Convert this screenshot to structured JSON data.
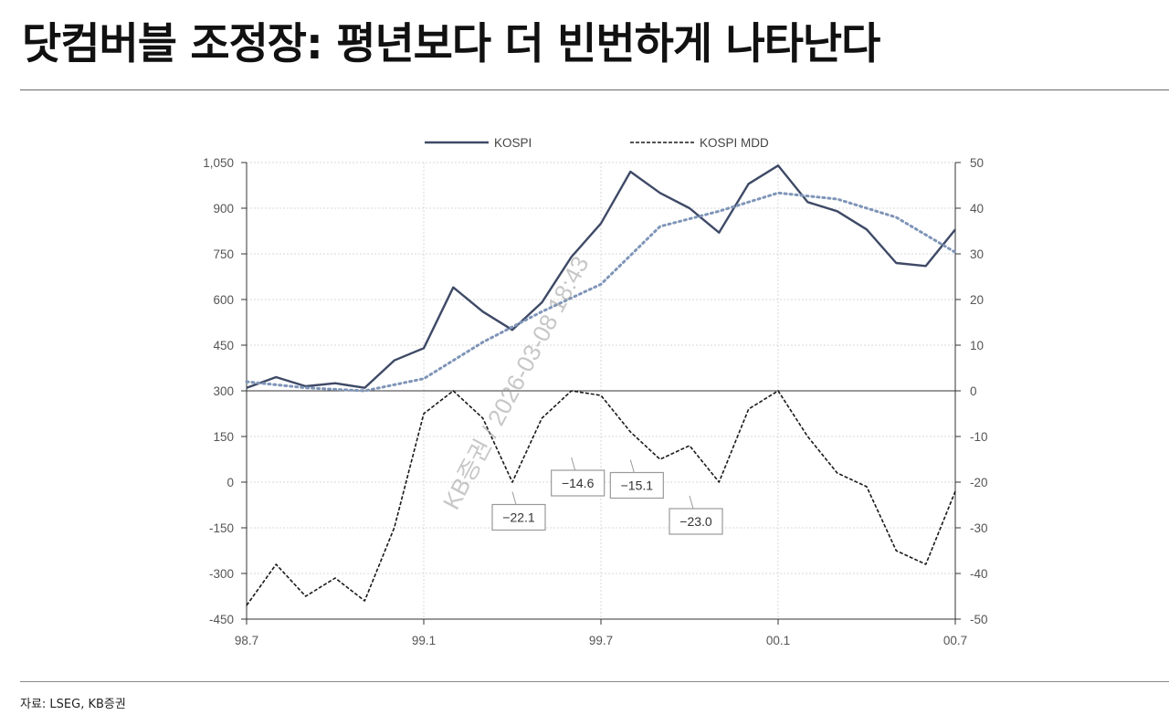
{
  "title": "닷컴버블 조정장: 평년보다 더 빈번하게 나타난다",
  "source": "자료: LSEG, KB증권",
  "watermark": "KB증권 / 2026-03-08 18:43",
  "colors": {
    "kospi": "#3e4a66",
    "kospi_trend": "#7f95b8",
    "mdd": "#1a1a1a",
    "grid": "#d9d9d9",
    "axis": "#333333",
    "callout_border": "#9a9a9a"
  },
  "chart_data": {
    "type": "line",
    "legend": {
      "position": "top-center",
      "items": [
        "KOSPI",
        "KOSPI MDD"
      ]
    },
    "grid": true,
    "x_ticks": [
      "98.7",
      "99.1",
      "99.7",
      "00.1",
      "00.7"
    ],
    "x_range": [
      "1998-07",
      "2000-07"
    ],
    "y_left": {
      "range": [
        -450,
        1050
      ],
      "ticks": [
        "1,050",
        "900",
        "750",
        "600",
        "450",
        "300",
        "150",
        "0",
        "-150",
        "-300",
        "-450"
      ]
    },
    "y_right": {
      "range": [
        -50,
        50
      ],
      "ticks": [
        "50",
        "40",
        "30",
        "20",
        "10",
        "0",
        "-10",
        "-20",
        "-30",
        "-40",
        "-50"
      ]
    },
    "series": [
      {
        "name": "KOSPI",
        "axis": "left",
        "style": "solid",
        "x": [
          "1998-07",
          "1998-08",
          "1998-09",
          "1998-10",
          "1998-11",
          "1998-12",
          "1999-01",
          "1999-02",
          "1999-03",
          "1999-04",
          "1999-05",
          "1999-06",
          "1999-07",
          "1999-08",
          "1999-09",
          "1999-10",
          "1999-11",
          "1999-12",
          "2000-01",
          "2000-02",
          "2000-03",
          "2000-04",
          "2000-05",
          "2000-06",
          "2000-07"
        ],
        "values": [
          310,
          345,
          315,
          325,
          310,
          400,
          440,
          640,
          560,
          500,
          590,
          740,
          850,
          1020,
          950,
          900,
          820,
          980,
          1040,
          920,
          890,
          830,
          720,
          710,
          830
        ]
      },
      {
        "name": "KOSPI",
        "axis": "left",
        "style": "dotted",
        "x": [
          "1998-07",
          "1998-09",
          "1998-11",
          "1999-01",
          "1999-03",
          "1999-05",
          "1999-07",
          "1999-09",
          "1999-11",
          "2000-01",
          "2000-03",
          "2000-05",
          "2000-07"
        ],
        "values": [
          330,
          310,
          300,
          340,
          460,
          560,
          650,
          840,
          890,
          950,
          930,
          870,
          755
        ]
      },
      {
        "name": "KOSPI MDD",
        "axis": "right",
        "style": "dashed",
        "x": [
          "1998-07",
          "1998-08",
          "1998-09",
          "1998-10",
          "1998-11",
          "1998-12",
          "1999-01",
          "1999-02",
          "1999-03",
          "1999-04",
          "1999-05",
          "1999-06",
          "1999-07",
          "1999-08",
          "1999-09",
          "1999-10",
          "1999-11",
          "1999-12",
          "2000-01",
          "2000-02",
          "2000-03",
          "2000-04",
          "2000-05",
          "2000-06",
          "2000-07"
        ],
        "values": [
          -47,
          -38,
          -45,
          -41,
          -46,
          -30,
          -5,
          0,
          -6,
          -20,
          -6,
          0,
          -1,
          -9,
          -15,
          -12,
          -20,
          -4,
          0,
          -10,
          -18,
          -21,
          -35,
          -38,
          -22
        ]
      }
    ],
    "annotations": [
      {
        "label": "−22.1",
        "x": "1999-04",
        "value": -22.1
      },
      {
        "label": "−14.6",
        "x": "1999-06",
        "value": -14.6
      },
      {
        "label": "−15.1",
        "x": "1999-08",
        "value": -15.1
      },
      {
        "label": "−23.0",
        "x": "1999-10",
        "value": -23.0
      }
    ]
  }
}
